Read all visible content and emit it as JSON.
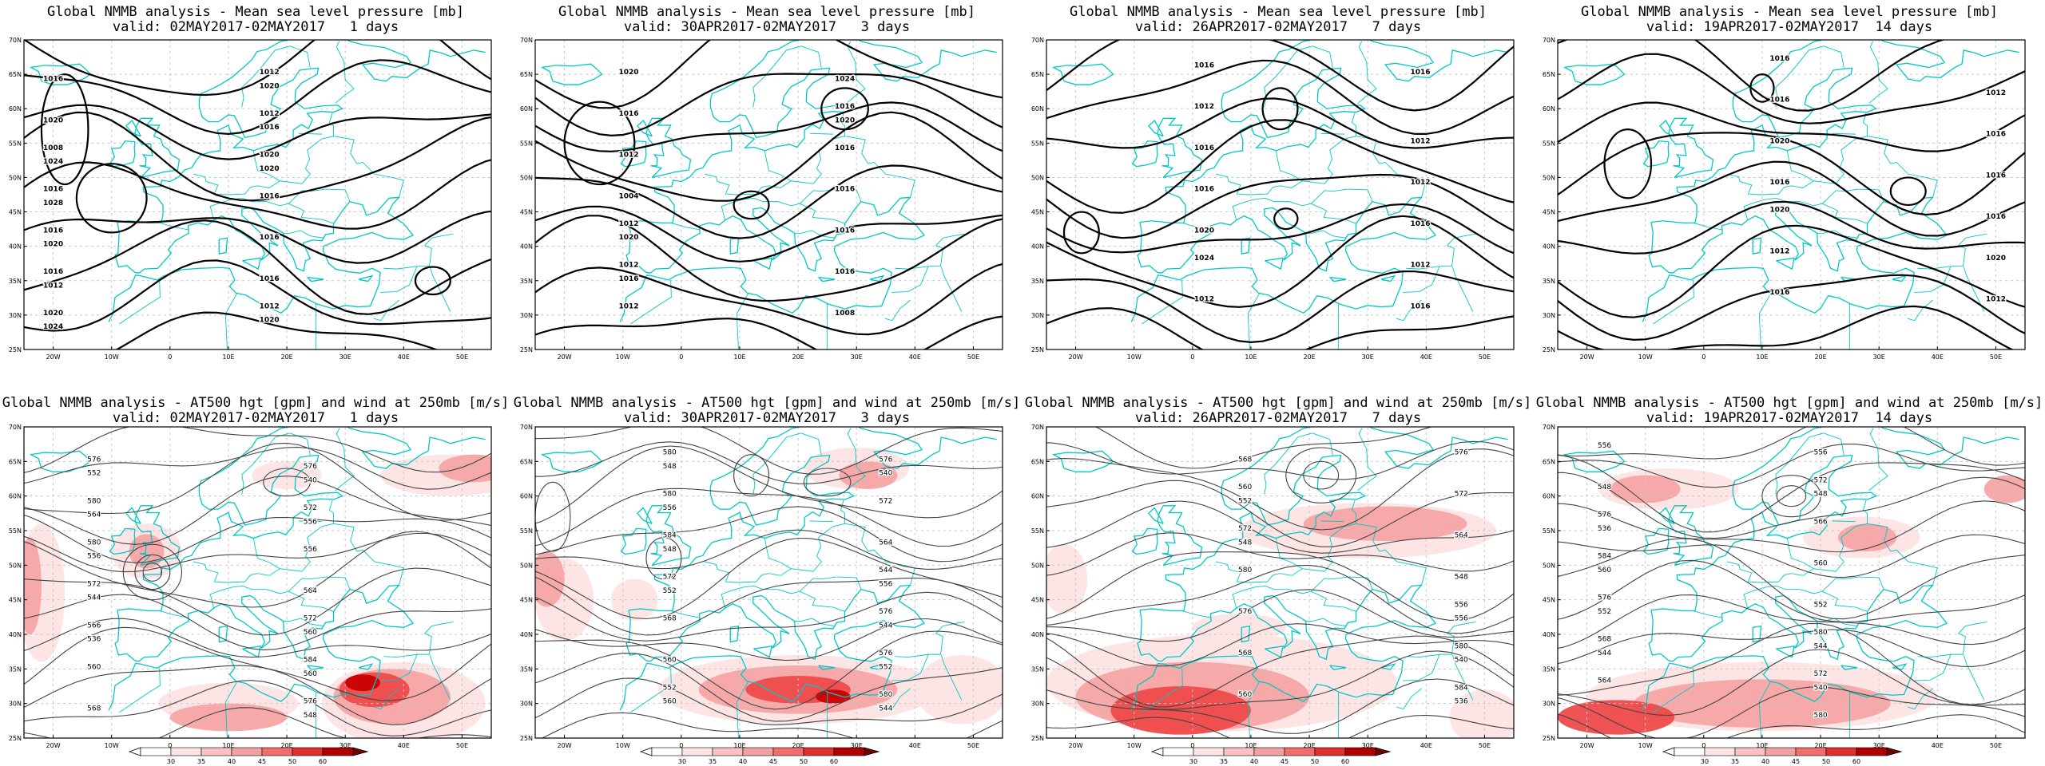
{
  "panels": [
    {
      "title": "Global NMMB analysis - Mean sea level pressure [mb]",
      "valid": "valid: 02MAY2017-02MAY2017   1 days",
      "labels": [
        "1024",
        "1020",
        "1012",
        "1016",
        "1020",
        "1020",
        "1028",
        "1020",
        "1024",
        "1016",
        "1020",
        "1016",
        "1016",
        "1016",
        "1020",
        "1020",
        "1016",
        "1012",
        "1016",
        "1012",
        "1016",
        "1012",
        "1008"
      ]
    },
    {
      "title": "Global NMMB analysis - Mean sea level pressure [mb]",
      "valid": "valid: 30APR2017-02MAY2017   3 days",
      "labels": [
        "1016",
        "1020",
        "1020",
        "1024",
        "1004",
        "1008",
        "1012",
        "1016",
        "1016",
        "1016",
        "1020",
        "1016",
        "1012",
        "1016",
        "1012",
        "1016",
        "1012"
      ]
    },
    {
      "title": "Global NMMB analysis - Mean sea level pressure [mb]",
      "valid": "valid: 26APR2017-02MAY2017   7 days",
      "labels": [
        "1020",
        "1016",
        "1016",
        "1016",
        "1016",
        "1012",
        "1012",
        "1016",
        "1016",
        "1012",
        "1012",
        "1012",
        "1024"
      ]
    },
    {
      "title": "Global NMMB analysis - Mean sea level pressure [mb]",
      "valid": "valid: 19APR2017-02MAY2017  14 days",
      "labels": [
        "1016",
        "1012",
        "1020",
        "1020",
        "1016",
        "1016",
        "1016",
        "1016",
        "1016",
        "1016",
        "1012",
        "1012",
        "1020"
      ]
    },
    {
      "title": "Global NMMB analysis - AT500 hgt [gpm] and wind at 250mb [m/s]",
      "valid": "valid: 02MAY2017-02MAY2017   1 days",
      "labels": [
        "556",
        "536",
        "540",
        "544",
        "548",
        "556",
        "560",
        "564",
        "560",
        "552",
        "564",
        "568",
        "556",
        "560",
        "572",
        "566",
        "576",
        "572",
        "576",
        "580",
        "584",
        "580",
        "572",
        "576"
      ]
    },
    {
      "title": "Global NMMB analysis - AT500 hgt [gpm] and wind at 250mb [m/s]",
      "valid": "valid: 30APR2017-02MAY2017   3 days",
      "labels": [
        "540",
        "552",
        "544",
        "548",
        "552",
        "556",
        "544",
        "548",
        "556",
        "560",
        "564",
        "560",
        "572",
        "568",
        "576",
        "572",
        "580",
        "584",
        "576",
        "580",
        "576",
        "580",
        "544",
        "552"
      ]
    },
    {
      "title": "Global NMMB analysis - AT500 hgt [gpm] and wind at 250mb [m/s]",
      "valid": "valid: 26APR2017-02MAY2017   7 days",
      "labels": [
        "536",
        "548",
        "540",
        "552",
        "556",
        "568",
        "548",
        "560",
        "564",
        "568",
        "572",
        "576",
        "576",
        "580",
        "584",
        "572",
        "580",
        "560",
        "556"
      ]
    },
    {
      "title": "Global NMMB analysis - AT500 hgt [gpm] and wind at 250mb [m/s]",
      "valid": "valid: 19APR2017-02MAY2017  14 days",
      "labels": [
        "544",
        "548",
        "552",
        "556",
        "560",
        "540",
        "536",
        "544",
        "548",
        "552",
        "556",
        "560",
        "564",
        "566",
        "568",
        "572",
        "576",
        "580",
        "584",
        "572",
        "576",
        "580"
      ]
    }
  ],
  "axes": {
    "lat": [
      "70N",
      "65N",
      "60N",
      "55N",
      "50N",
      "45N",
      "40N",
      "35N",
      "30N",
      "25N"
    ],
    "lon": [
      "20W",
      "10W",
      "0",
      "10E",
      "20E",
      "30E",
      "40E",
      "50E"
    ]
  },
  "colorbar": {
    "ticks": [
      "30",
      "35",
      "40",
      "45",
      "50",
      "60"
    ]
  },
  "colors": {
    "coast": "#00c8c8",
    "contour_msl": "#000000",
    "contour_hgt": "#444444",
    "wind_30": "#fde4e4",
    "wind_40": "#f7a5a5",
    "wind_50": "#ee4a4a",
    "wind_60": "#c80000"
  }
}
